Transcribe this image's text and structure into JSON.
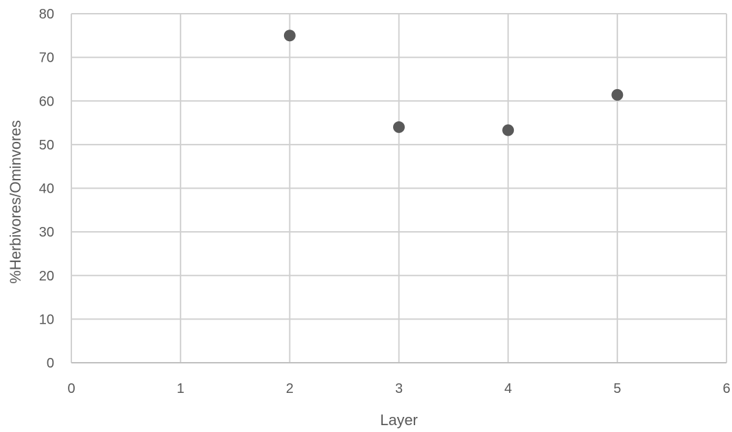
{
  "chart_data": {
    "type": "scatter",
    "xlabel": "Layer",
    "ylabel": "%Herbivores/Ominvores",
    "xlim": [
      0,
      6
    ],
    "ylim": [
      0,
      80
    ],
    "x_ticks": [
      0,
      1,
      2,
      3,
      4,
      5,
      6
    ],
    "y_ticks": [
      0,
      10,
      20,
      30,
      40,
      50,
      60,
      70,
      80
    ],
    "grid": true,
    "marker_color": "#595959",
    "series": [
      {
        "x": [
          2,
          3,
          4,
          5
        ],
        "y": [
          75,
          54,
          53.3,
          61.4
        ]
      }
    ]
  }
}
